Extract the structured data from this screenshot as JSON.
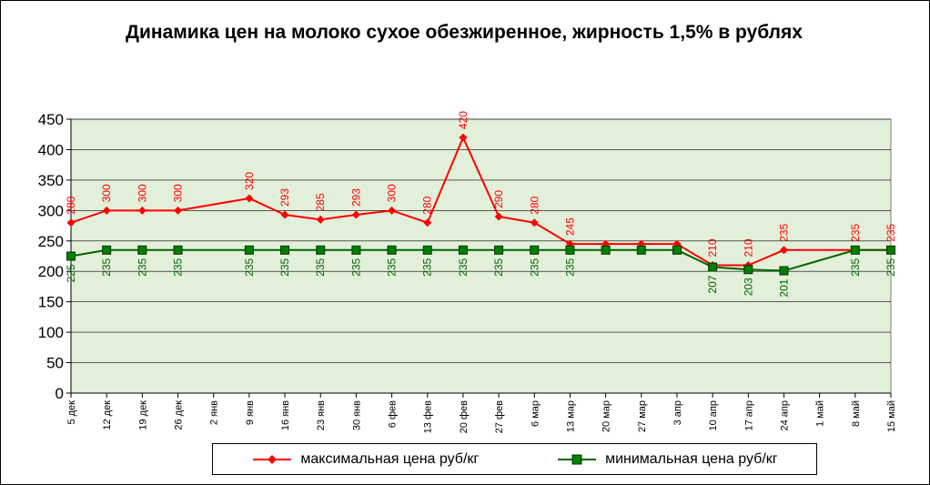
{
  "chart_data": {
    "type": "line",
    "title": "Динамика цен на молоко сухое обезжиренное, жирность 1,5%  в рублях",
    "xlabel": "",
    "ylabel": "",
    "ylim": [
      0,
      450
    ],
    "yticks": [
      "0",
      "50",
      "100",
      "150",
      "200",
      "250",
      "300",
      "350",
      "400",
      "450"
    ],
    "categories": [
      "5 дек",
      "12 дек",
      "19 дек",
      "26 дек",
      "2 янв",
      "9 янв",
      "16 янв",
      "23 янв",
      "30 янв",
      "6 фев",
      "13 фев",
      "20 фев",
      "27 фев",
      "6 мар",
      "13 мар",
      "20 мар",
      "27 мар",
      "3 апр",
      "10 апр",
      "17 апр",
      "24 апр",
      "1 май",
      "8 май",
      "15 май"
    ],
    "grid": true,
    "legend_position": "bottom",
    "series": [
      {
        "name": "максимальная цена руб/кг",
        "color": "#ff0000",
        "marker": "diamond",
        "values": [
          280,
          300,
          300,
          300,
          null,
          320,
          293,
          285,
          293,
          300,
          280,
          420,
          290,
          280,
          245,
          245,
          245,
          245,
          210,
          210,
          235,
          null,
          235,
          235
        ],
        "labels": [
          "280",
          "300",
          "300",
          "300",
          null,
          "320",
          "293",
          "285",
          "293",
          "300",
          "280",
          "420",
          "290",
          "280",
          "245",
          null,
          null,
          null,
          "210",
          "210",
          "235",
          null,
          "235",
          "235"
        ]
      },
      {
        "name": "минимальная цена руб/кг",
        "color": "#006400",
        "marker": "square",
        "values": [
          225,
          235,
          235,
          235,
          null,
          235,
          235,
          235,
          235,
          235,
          235,
          235,
          235,
          235,
          235,
          235,
          235,
          235,
          207,
          203,
          201,
          null,
          235,
          235
        ],
        "labels": [
          "225",
          "235",
          "235",
          "235",
          null,
          "235",
          "235",
          "235",
          "235",
          "235",
          "235",
          "235",
          "235",
          "235",
          "235",
          null,
          null,
          null,
          "207",
          "203",
          "201",
          null,
          "235",
          "235"
        ]
      }
    ]
  },
  "colors": {
    "plot_background": "#e2efd9",
    "gridline": "#000000",
    "max_series": "#ff0000",
    "min_series": "#006400",
    "min_marker_fill": "#008000"
  }
}
